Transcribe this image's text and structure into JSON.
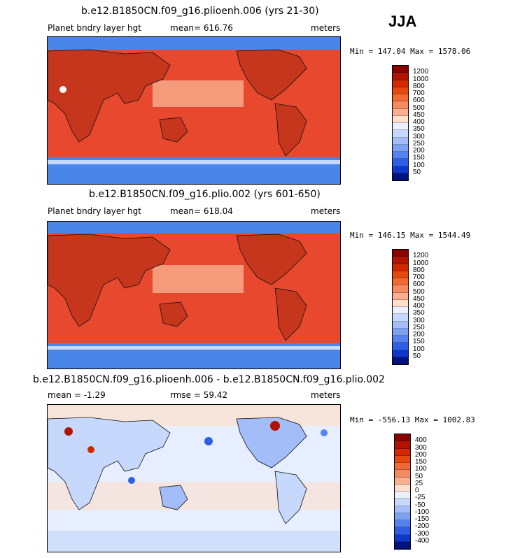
{
  "season": "JJA",
  "colors": {
    "ocean_hi": "#e8492e",
    "land": "#c5361c",
    "polar": "#4a86e8",
    "diff_base": "#e6eeff",
    "coast": "#111111"
  },
  "chart_data": [
    {
      "type": "heatmap",
      "title": "b.e12.B1850CN.f09_g16.plioenh.006 (yrs 21-30)",
      "left_label": "Planet bndry layer hgt",
      "center_label": "mean= 616.76",
      "right_label": "meters",
      "min_max": "Min = 147.04 Max = 1578.06",
      "mean": 616.76,
      "min": 147.04,
      "max": 1578.06,
      "units": "meters",
      "levels": [
        "1200",
        "1000",
        "800",
        "700",
        "600",
        "500",
        "450",
        "400",
        "350",
        "300",
        "250",
        "200",
        "150",
        "100",
        "50"
      ],
      "level_colors": [
        "#8b0000",
        "#b01400",
        "#d22a00",
        "#e44a10",
        "#f06a36",
        "#f48a62",
        "#f8b090",
        "#fde0cc",
        "#eaf1fd",
        "#c6d8fb",
        "#a2bdf7",
        "#7ca0f2",
        "#5582ec",
        "#2e5fe2",
        "#1037c8",
        "#00137e"
      ]
    },
    {
      "type": "heatmap",
      "title": "b.e12.B1850CN.f09_g16.plio.002 (yrs 601-650)",
      "left_label": "Planet bndry layer hgt",
      "center_label": "mean= 618.04",
      "right_label": "meters",
      "min_max": "Min = 146.15 Max = 1544.49",
      "mean": 618.04,
      "min": 146.15,
      "max": 1544.49,
      "units": "meters",
      "levels": [
        "1200",
        "1000",
        "800",
        "700",
        "600",
        "500",
        "450",
        "400",
        "350",
        "300",
        "250",
        "200",
        "150",
        "100",
        "50"
      ],
      "level_colors": [
        "#8b0000",
        "#b01400",
        "#d22a00",
        "#e44a10",
        "#f06a36",
        "#f48a62",
        "#f8b090",
        "#fde0cc",
        "#eaf1fd",
        "#c6d8fb",
        "#a2bdf7",
        "#7ca0f2",
        "#5582ec",
        "#2e5fe2",
        "#1037c8",
        "#00137e"
      ]
    },
    {
      "type": "heatmap",
      "title": "b.e12.B1850CN.f09_g16.plioenh.006 - b.e12.B1850CN.f09_g16.plio.002",
      "left_label": "mean =  -1.29",
      "center_label": "rmse =  59.42",
      "right_label": "meters",
      "min_max": "Min = -556.13 Max = 1002.83",
      "mean": -1.29,
      "rmse": 59.42,
      "min": -556.13,
      "max": 1002.83,
      "units": "meters",
      "levels": [
        "400",
        "300",
        "200",
        "150",
        "100",
        "50",
        "25",
        "0",
        "-25",
        "-50",
        "-100",
        "-150",
        "-200",
        "-300",
        "-400"
      ],
      "level_colors": [
        "#8b0000",
        "#b01400",
        "#d22a00",
        "#e44a10",
        "#f06a36",
        "#f48a62",
        "#f8b090",
        "#fde0cc",
        "#eaf1fd",
        "#c6d8fb",
        "#a2bdf7",
        "#7ca0f2",
        "#5582ec",
        "#2e5fe2",
        "#1037c8",
        "#00137e"
      ]
    }
  ]
}
